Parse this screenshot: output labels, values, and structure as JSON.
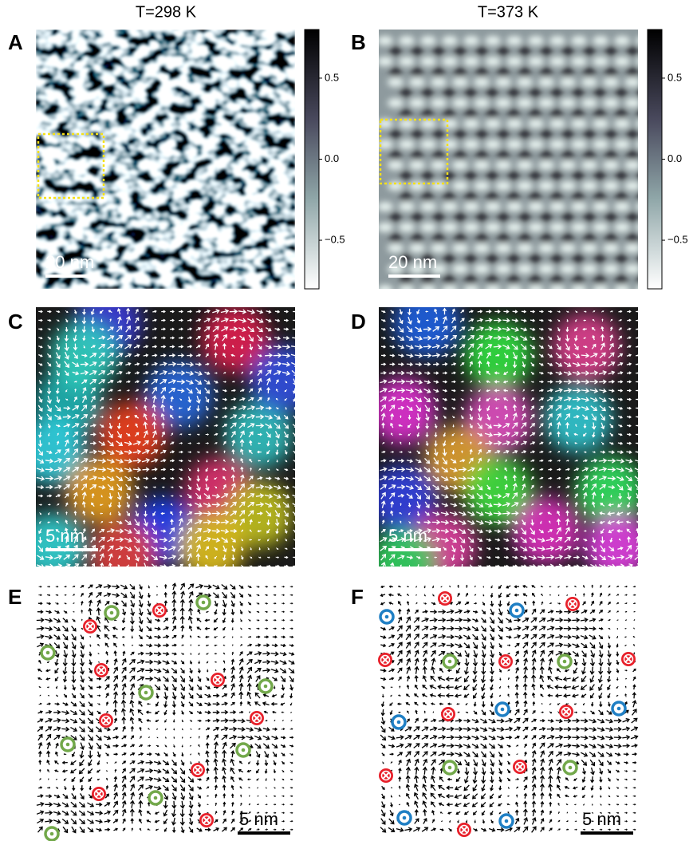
{
  "panels": [
    {
      "label": "A",
      "title": "T=298 K",
      "scale_bar": "20 nm",
      "colorbar": {
        "lim": [
          -0.8,
          0.8
        ],
        "ticks": [
          0.5,
          {
            "value": 0,
            "label": "0.0"
          },
          {
            "value": -0.5,
            "label": "−0.5"
          }
        ]
      }
    },
    {
      "label": "B",
      "title": "T=373 K",
      "scale_bar": "20 nm",
      "colorbar": {
        "lim": [
          -0.8,
          0.8
        ],
        "ticks": [
          0.5,
          {
            "value": 0,
            "label": "0.0"
          },
          {
            "value": -0.5,
            "label": "−0.5"
          }
        ]
      }
    },
    {
      "label": "C",
      "scale_bar": "5 nm"
    },
    {
      "label": "D",
      "scale_bar": "5 nm"
    },
    {
      "label": "E",
      "scale_bar": "5 nm"
    },
    {
      "label": "F",
      "scale_bar": "5 nm"
    }
  ]
}
